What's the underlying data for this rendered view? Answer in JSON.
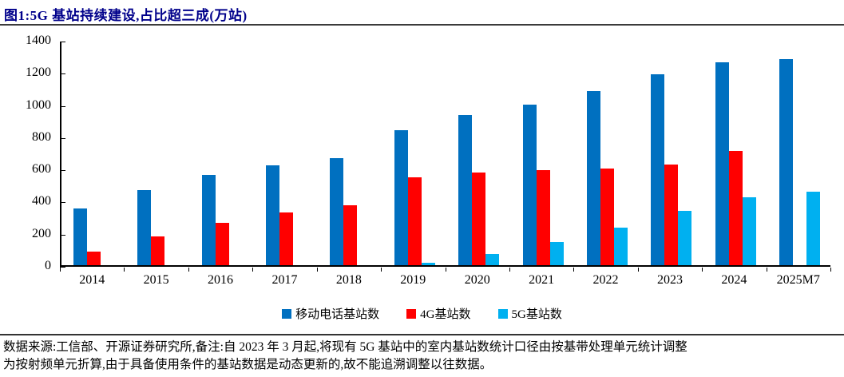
{
  "title": "图1:5G 基站持续建设,占比超三成(万站)",
  "chart_data": {
    "type": "bar",
    "categories": [
      "2014",
      "2015",
      "2016",
      "2017",
      "2018",
      "2019",
      "2020",
      "2021",
      "2022",
      "2023",
      "2024",
      "2025M7"
    ],
    "series": [
      {
        "name": "移动电话基站数",
        "color": "#0070C0",
        "values": [
          352,
          466,
          559,
          620,
          665,
          841,
          931,
          996,
          1083,
          1186,
          1261,
          1280
        ]
      },
      {
        "name": "4G基站数",
        "color": "#FF0000",
        "values": [
          85,
          178,
          263,
          328,
          372,
          545,
          576,
          590,
          603,
          628,
          710,
          null
        ]
      },
      {
        "name": "5G基站数",
        "color": "#00B0F0",
        "values": [
          null,
          null,
          null,
          null,
          null,
          13,
          72,
          142,
          231,
          337,
          424,
          458
        ]
      }
    ],
    "title": "图1:5G 基站持续建设,占比超三成(万站)",
    "xlabel": "",
    "ylabel": "",
    "ylim": [
      0,
      1400
    ],
    "yticks": [
      0,
      200,
      400,
      600,
      800,
      1000,
      1200,
      1400
    ],
    "grid": false,
    "legend_position": "bottom"
  },
  "footer": {
    "line1": "数据来源:工信部、开源证券研究所,备注:自 2023 年 3 月起,将现有 5G 基站中的室内基站数统计口径由按基带处理单元统计调整",
    "line2": "为按射频单元折算,由于具备使用条件的基站数据是动态更新的,故不能追溯调整以往数据。"
  },
  "colors": {
    "title_text": "#00008B",
    "rule": "#3b3b3b",
    "axis": "#000000"
  }
}
